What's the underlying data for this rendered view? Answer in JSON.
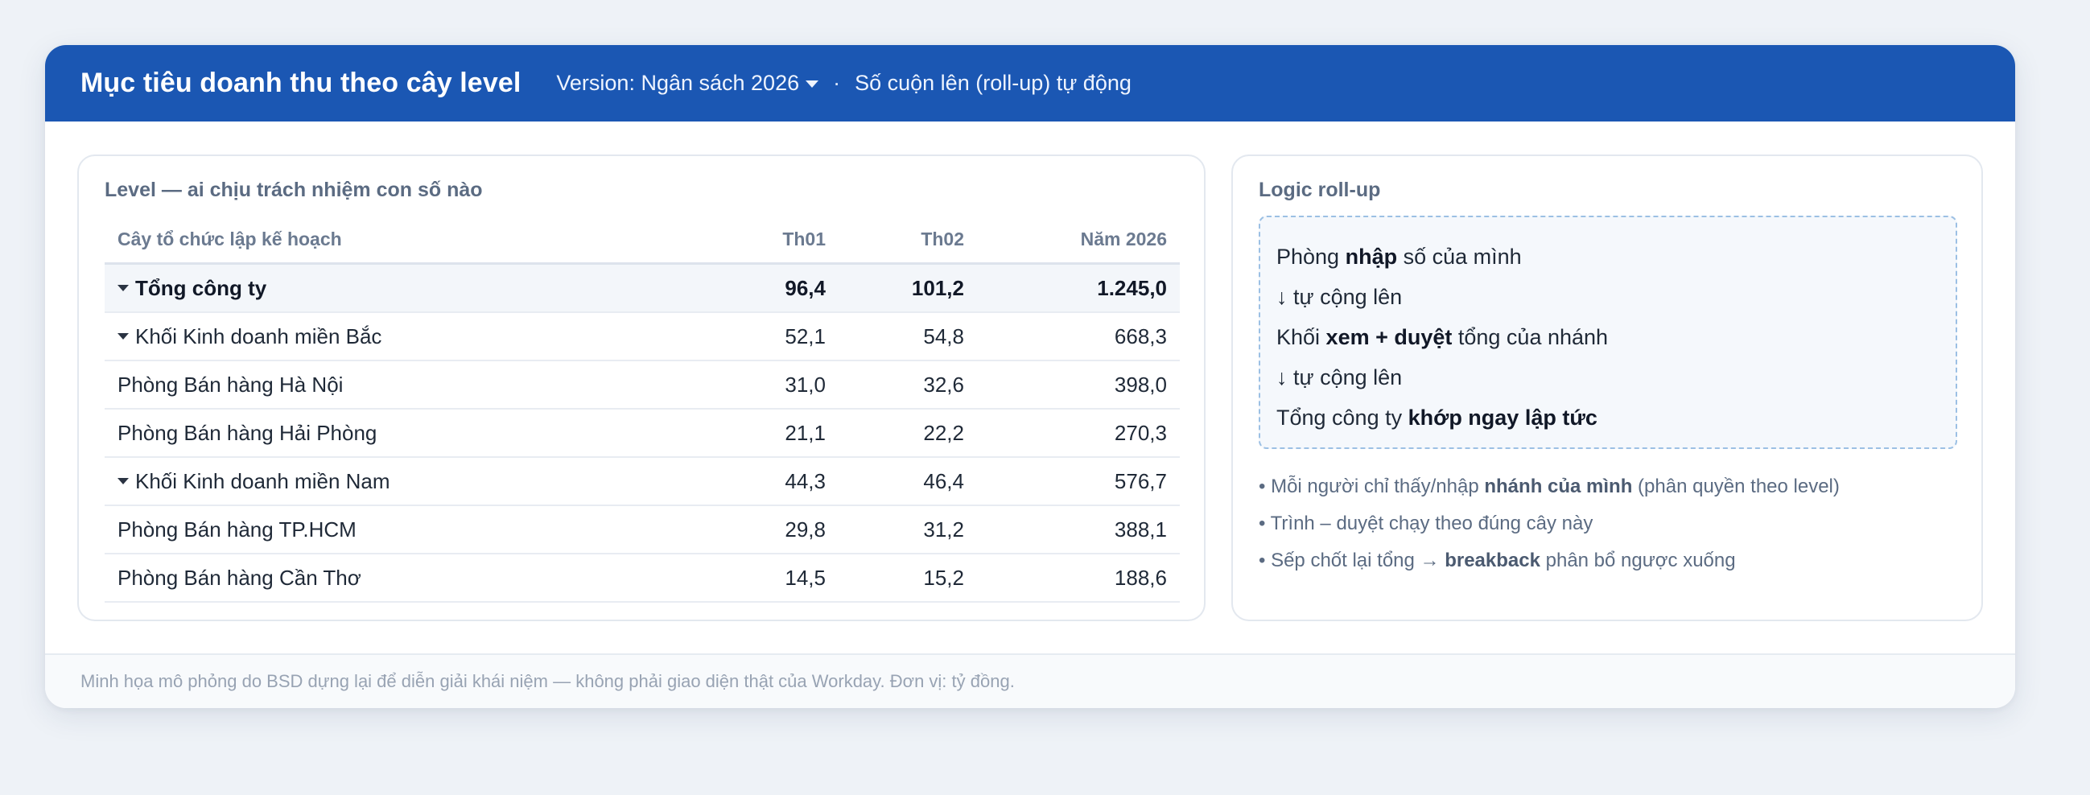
{
  "header": {
    "title": "Mục tiêu doanh thu theo cây level",
    "version_label": "Version: Ngân sách 2026",
    "separator": "·",
    "rollup_note": "Số cuộn lên (roll-up) tự động",
    "background_color": "#1b57b3"
  },
  "left_panel": {
    "title": "Level — ai chịu trách nhiệm con số nào",
    "columns": [
      "Cây tổ chức lập kế hoạch",
      "Th01",
      "Th02",
      "Năm 2026"
    ],
    "rows": [
      {
        "name": "Tổng công ty",
        "level": 0,
        "expanded": true,
        "th01": "96,4",
        "th02": "101,2",
        "year": "1.245,0"
      },
      {
        "name": "Khối Kinh doanh miền Bắc",
        "level": 1,
        "expanded": true,
        "th01": "52,1",
        "th02": "54,8",
        "year": "668,3"
      },
      {
        "name": "Phòng Bán hàng Hà Nội",
        "level": 2,
        "expanded": false,
        "th01": "31,0",
        "th02": "32,6",
        "year": "398,0"
      },
      {
        "name": "Phòng Bán hàng Hải Phòng",
        "level": 2,
        "expanded": false,
        "th01": "21,1",
        "th02": "22,2",
        "year": "270,3"
      },
      {
        "name": "Khối Kinh doanh miền Nam",
        "level": 1,
        "expanded": true,
        "th01": "44,3",
        "th02": "46,4",
        "year": "576,7"
      },
      {
        "name": "Phòng Bán hàng TP.HCM",
        "level": 2,
        "expanded": false,
        "th01": "29,8",
        "th02": "31,2",
        "year": "388,1"
      },
      {
        "name": "Phòng Bán hàng Cần Thơ",
        "level": 2,
        "expanded": false,
        "th01": "14,5",
        "th02": "15,2",
        "year": "188,6"
      }
    ]
  },
  "right_panel": {
    "title": "Logic roll-up",
    "logic": {
      "line1": {
        "pre": "Phòng ",
        "bold": "nhập",
        "post": " số của mình"
      },
      "line2": "↓ tự cộng lên",
      "line3": {
        "pre": "Khối ",
        "bold": "xem + duyệt",
        "post": " tổng của nhánh"
      },
      "line4": "↓ tự cộng lên",
      "line5": {
        "pre": "Tổng công ty ",
        "bold": "khớp ngay lập tức",
        "post": ""
      }
    },
    "notes": [
      {
        "pre": "• Mỗi người chỉ thấy/nhập ",
        "bold": "nhánh của mình",
        "post": " (phân quyền theo level)"
      },
      {
        "pre": "• Trình – duyệt chạy theo đúng cây này",
        "bold": "",
        "post": ""
      },
      {
        "pre": "• Sếp chốt lại tổng → ",
        "bold": "breakback",
        "post": " phân bổ ngược xuống"
      }
    ]
  },
  "footer": {
    "text": "Minh họa mô phỏng do BSD dựng lại để diễn giải khái niệm — không phải giao diện thật của Workday. Đơn vị: tỷ đồng."
  }
}
